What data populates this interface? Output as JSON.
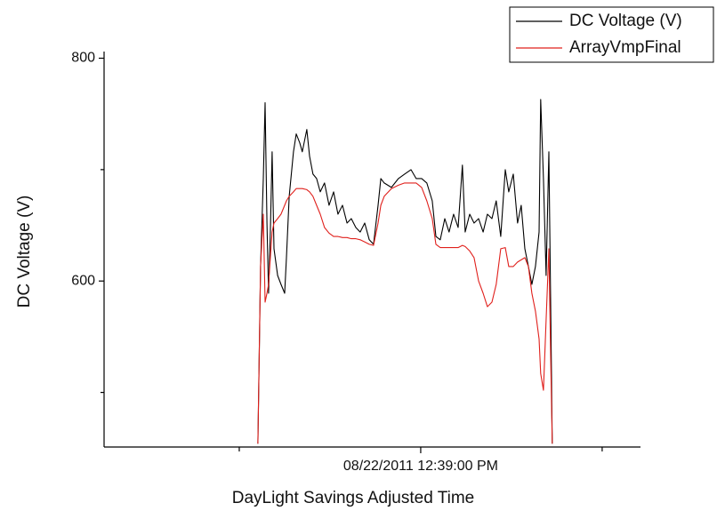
{
  "chart_data": {
    "type": "line",
    "x_label": "DayLight Savings Adjusted Time",
    "y_label": "DC Voltage (V)",
    "x": [
      5.47,
      5.59,
      5.71,
      5.79,
      5.87,
      5.94,
      6.02,
      6.1,
      6.18,
      6.34,
      6.49,
      6.65,
      6.73,
      6.85,
      7.04,
      7.16,
      7.32,
      7.43,
      7.63,
      7.75,
      7.9,
      8.06,
      8.22,
      8.41,
      8.61,
      8.81,
      9.0,
      9.2,
      9.4,
      9.59,
      9.79,
      9.98,
      10.18,
      10.38,
      10.57,
      10.77,
      10.89,
      11.04,
      11.36,
      11.67,
      11.94,
      12.22,
      12.45,
      12.69,
      12.92,
      13.16,
      13.32,
      13.51,
      13.71,
      13.9,
      14.1,
      14.3,
      14.49,
      14.61,
      14.81,
      15.0,
      15.2,
      15.4,
      15.59,
      15.79,
      15.98,
      16.18,
      16.38,
      16.53,
      16.73,
      16.92,
      17.08,
      17.24,
      17.4,
      17.55,
      17.71,
      17.87,
      17.94,
      18.06,
      18.18,
      18.3,
      18.38,
      18.45
    ],
    "series": [
      {
        "name": "DC Voltage (V)",
        "color": "#000000",
        "values": [
          454,
          613,
          692,
          760,
          652,
          589,
          644,
          716,
          629,
          605,
          597,
          589,
          621,
          676,
          716,
          732,
          724,
          716,
          736,
          712,
          696,
          692,
          680,
          688,
          668,
          680,
          660,
          668,
          652,
          656,
          648,
          644,
          652,
          637,
          633,
          668,
          692,
          688,
          684,
          692,
          696,
          700,
          692,
          692,
          688,
          672,
          640,
          637,
          656,
          644,
          660,
          648,
          704,
          644,
          660,
          652,
          656,
          644,
          660,
          656,
          672,
          640,
          700,
          680,
          696,
          652,
          668,
          629,
          613,
          597,
          613,
          644,
          763,
          692,
          605,
          716,
          581,
          454
        ]
      },
      {
        "name": "ArrayVmpFinal",
        "color": "#e0201c",
        "values": [
          454,
          613,
          660,
          581,
          589,
          597,
          621,
          644,
          652,
          656,
          660,
          668,
          672,
          676,
          680,
          683,
          683,
          683,
          682,
          680,
          676,
          668,
          660,
          648,
          643,
          640,
          640,
          639,
          639,
          638,
          638,
          637,
          635,
          633,
          632,
          652,
          668,
          676,
          683,
          686,
          688,
          688,
          688,
          684,
          672,
          656,
          633,
          630,
          630,
          630,
          630,
          630,
          632,
          631,
          627,
          621,
          600,
          589,
          577,
          581,
          597,
          629,
          630,
          613,
          613,
          617,
          619,
          621,
          613,
          589,
          573,
          548,
          517,
          502,
          565,
          629,
          533,
          454
        ]
      }
    ],
    "xlim": [
      -1.31,
      22.34
    ],
    "xticks": [
      {
        "value": 12.65,
        "label": "08/22/2011 12:39:00 PM"
      }
    ],
    "xminorticks": [
      4.65,
      20.65
    ],
    "ylim": [
      451,
      802
    ],
    "yticks": [
      600,
      800
    ],
    "yminorticks": [
      500,
      700
    ],
    "grid": false,
    "legend": "top-right"
  }
}
